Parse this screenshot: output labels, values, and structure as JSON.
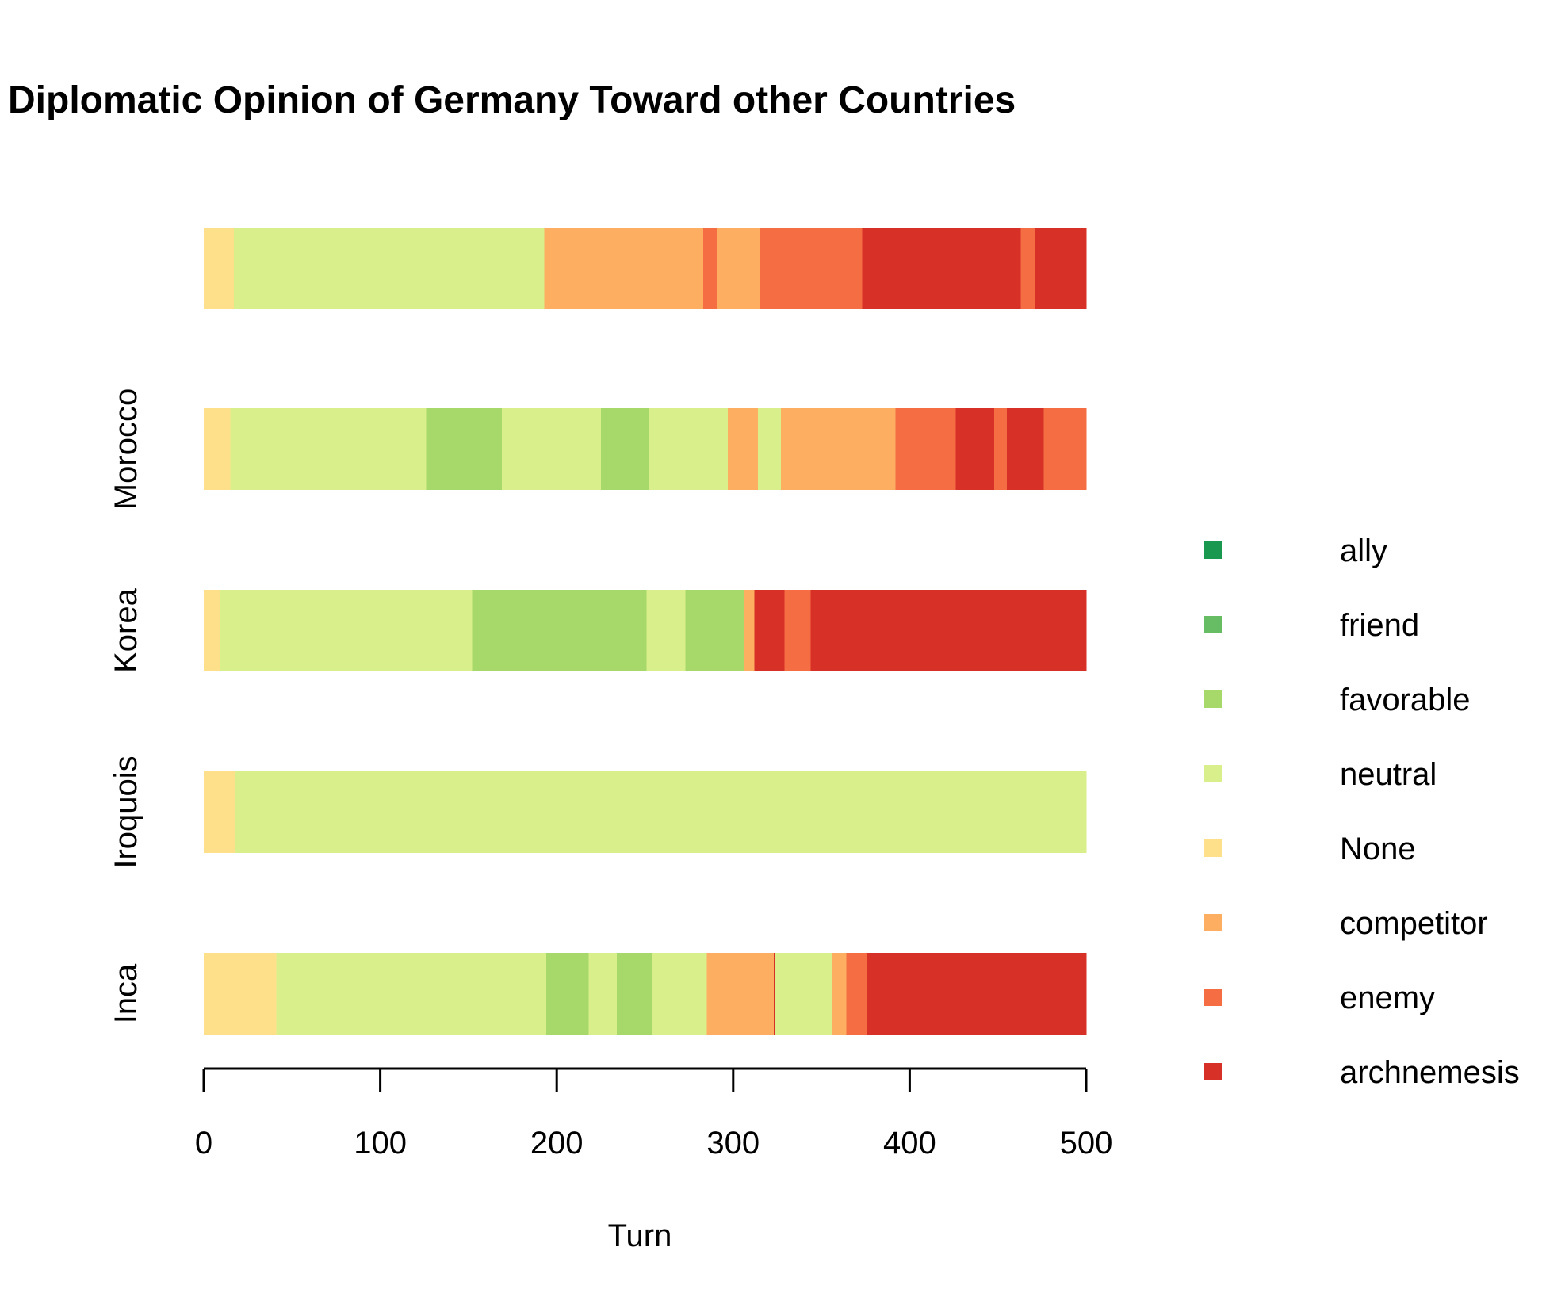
{
  "chart_data": {
    "type": "bar",
    "orientation": "horizontal",
    "stacked": true,
    "title": "Diplomatic Opinion of Germany Toward other Countries",
    "xlabel": "Turn",
    "ylabel": "",
    "xlim": [
      0,
      500
    ],
    "xticks": [
      "0",
      "100",
      "200",
      "300",
      "400",
      "500"
    ],
    "grid": false,
    "legend_position": "right",
    "categories": [
      "Inca",
      "Iroquois",
      "Korea",
      "Morocco",
      ""
    ],
    "states": [
      {
        "name": "ally",
        "color": "#1a9850"
      },
      {
        "name": "friend",
        "color": "#66bd63"
      },
      {
        "name": "favorable",
        "color": "#a6d96a"
      },
      {
        "name": "neutral",
        "color": "#d9ef8b"
      },
      {
        "name": "None",
        "color": "#fee08b"
      },
      {
        "name": "competitor",
        "color": "#fdae61"
      },
      {
        "name": "enemy",
        "color": "#f46d43"
      },
      {
        "name": "archnemesis",
        "color": "#d73027"
      }
    ],
    "bars": [
      {
        "category": "Inca",
        "segments": [
          {
            "state": "None",
            "start": 0,
            "end": 41
          },
          {
            "state": "neutral",
            "start": 41,
            "end": 194
          },
          {
            "state": "favorable",
            "start": 194,
            "end": 218
          },
          {
            "state": "neutral",
            "start": 218,
            "end": 234
          },
          {
            "state": "favorable",
            "start": 234,
            "end": 254
          },
          {
            "state": "neutral",
            "start": 254,
            "end": 285
          },
          {
            "state": "competitor",
            "start": 285,
            "end": 323
          },
          {
            "state": "archnemesis",
            "start": 323,
            "end": 324
          },
          {
            "state": "neutral",
            "start": 324,
            "end": 356
          },
          {
            "state": "competitor",
            "start": 356,
            "end": 364
          },
          {
            "state": "enemy",
            "start": 364,
            "end": 376
          },
          {
            "state": "archnemesis",
            "start": 376,
            "end": 500
          }
        ]
      },
      {
        "category": "Iroquois",
        "segments": [
          {
            "state": "None",
            "start": 0,
            "end": 18
          },
          {
            "state": "neutral",
            "start": 18,
            "end": 500
          }
        ]
      },
      {
        "category": "Korea",
        "segments": [
          {
            "state": "None",
            "start": 0,
            "end": 9
          },
          {
            "state": "neutral",
            "start": 9,
            "end": 152
          },
          {
            "state": "favorable",
            "start": 152,
            "end": 251
          },
          {
            "state": "neutral",
            "start": 251,
            "end": 273
          },
          {
            "state": "favorable",
            "start": 273,
            "end": 306
          },
          {
            "state": "competitor",
            "start": 306,
            "end": 312
          },
          {
            "state": "archnemesis",
            "start": 312,
            "end": 329
          },
          {
            "state": "enemy",
            "start": 329,
            "end": 344
          },
          {
            "state": "archnemesis",
            "start": 344,
            "end": 500
          }
        ]
      },
      {
        "category": "Morocco",
        "segments": [
          {
            "state": "None",
            "start": 0,
            "end": 15
          },
          {
            "state": "neutral",
            "start": 15,
            "end": 126
          },
          {
            "state": "favorable",
            "start": 126,
            "end": 169
          },
          {
            "state": "neutral",
            "start": 169,
            "end": 225
          },
          {
            "state": "favorable",
            "start": 225,
            "end": 252
          },
          {
            "state": "neutral",
            "start": 252,
            "end": 297
          },
          {
            "state": "competitor",
            "start": 297,
            "end": 314
          },
          {
            "state": "neutral",
            "start": 314,
            "end": 327
          },
          {
            "state": "competitor",
            "start": 327,
            "end": 392
          },
          {
            "state": "enemy",
            "start": 392,
            "end": 426
          },
          {
            "state": "archnemesis",
            "start": 426,
            "end": 448
          },
          {
            "state": "enemy",
            "start": 448,
            "end": 455
          },
          {
            "state": "archnemesis",
            "start": 455,
            "end": 476
          },
          {
            "state": "enemy",
            "start": 476,
            "end": 500
          }
        ]
      },
      {
        "category": "",
        "segments": [
          {
            "state": "None",
            "start": 0,
            "end": 17
          },
          {
            "state": "neutral",
            "start": 17,
            "end": 193
          },
          {
            "state": "competitor",
            "start": 193,
            "end": 283
          },
          {
            "state": "enemy",
            "start": 283,
            "end": 291
          },
          {
            "state": "competitor",
            "start": 291,
            "end": 315
          },
          {
            "state": "enemy",
            "start": 315,
            "end": 373
          },
          {
            "state": "archnemesis",
            "start": 373,
            "end": 463
          },
          {
            "state": "enemy",
            "start": 463,
            "end": 471
          },
          {
            "state": "archnemesis",
            "start": 471,
            "end": 500
          }
        ]
      }
    ]
  }
}
